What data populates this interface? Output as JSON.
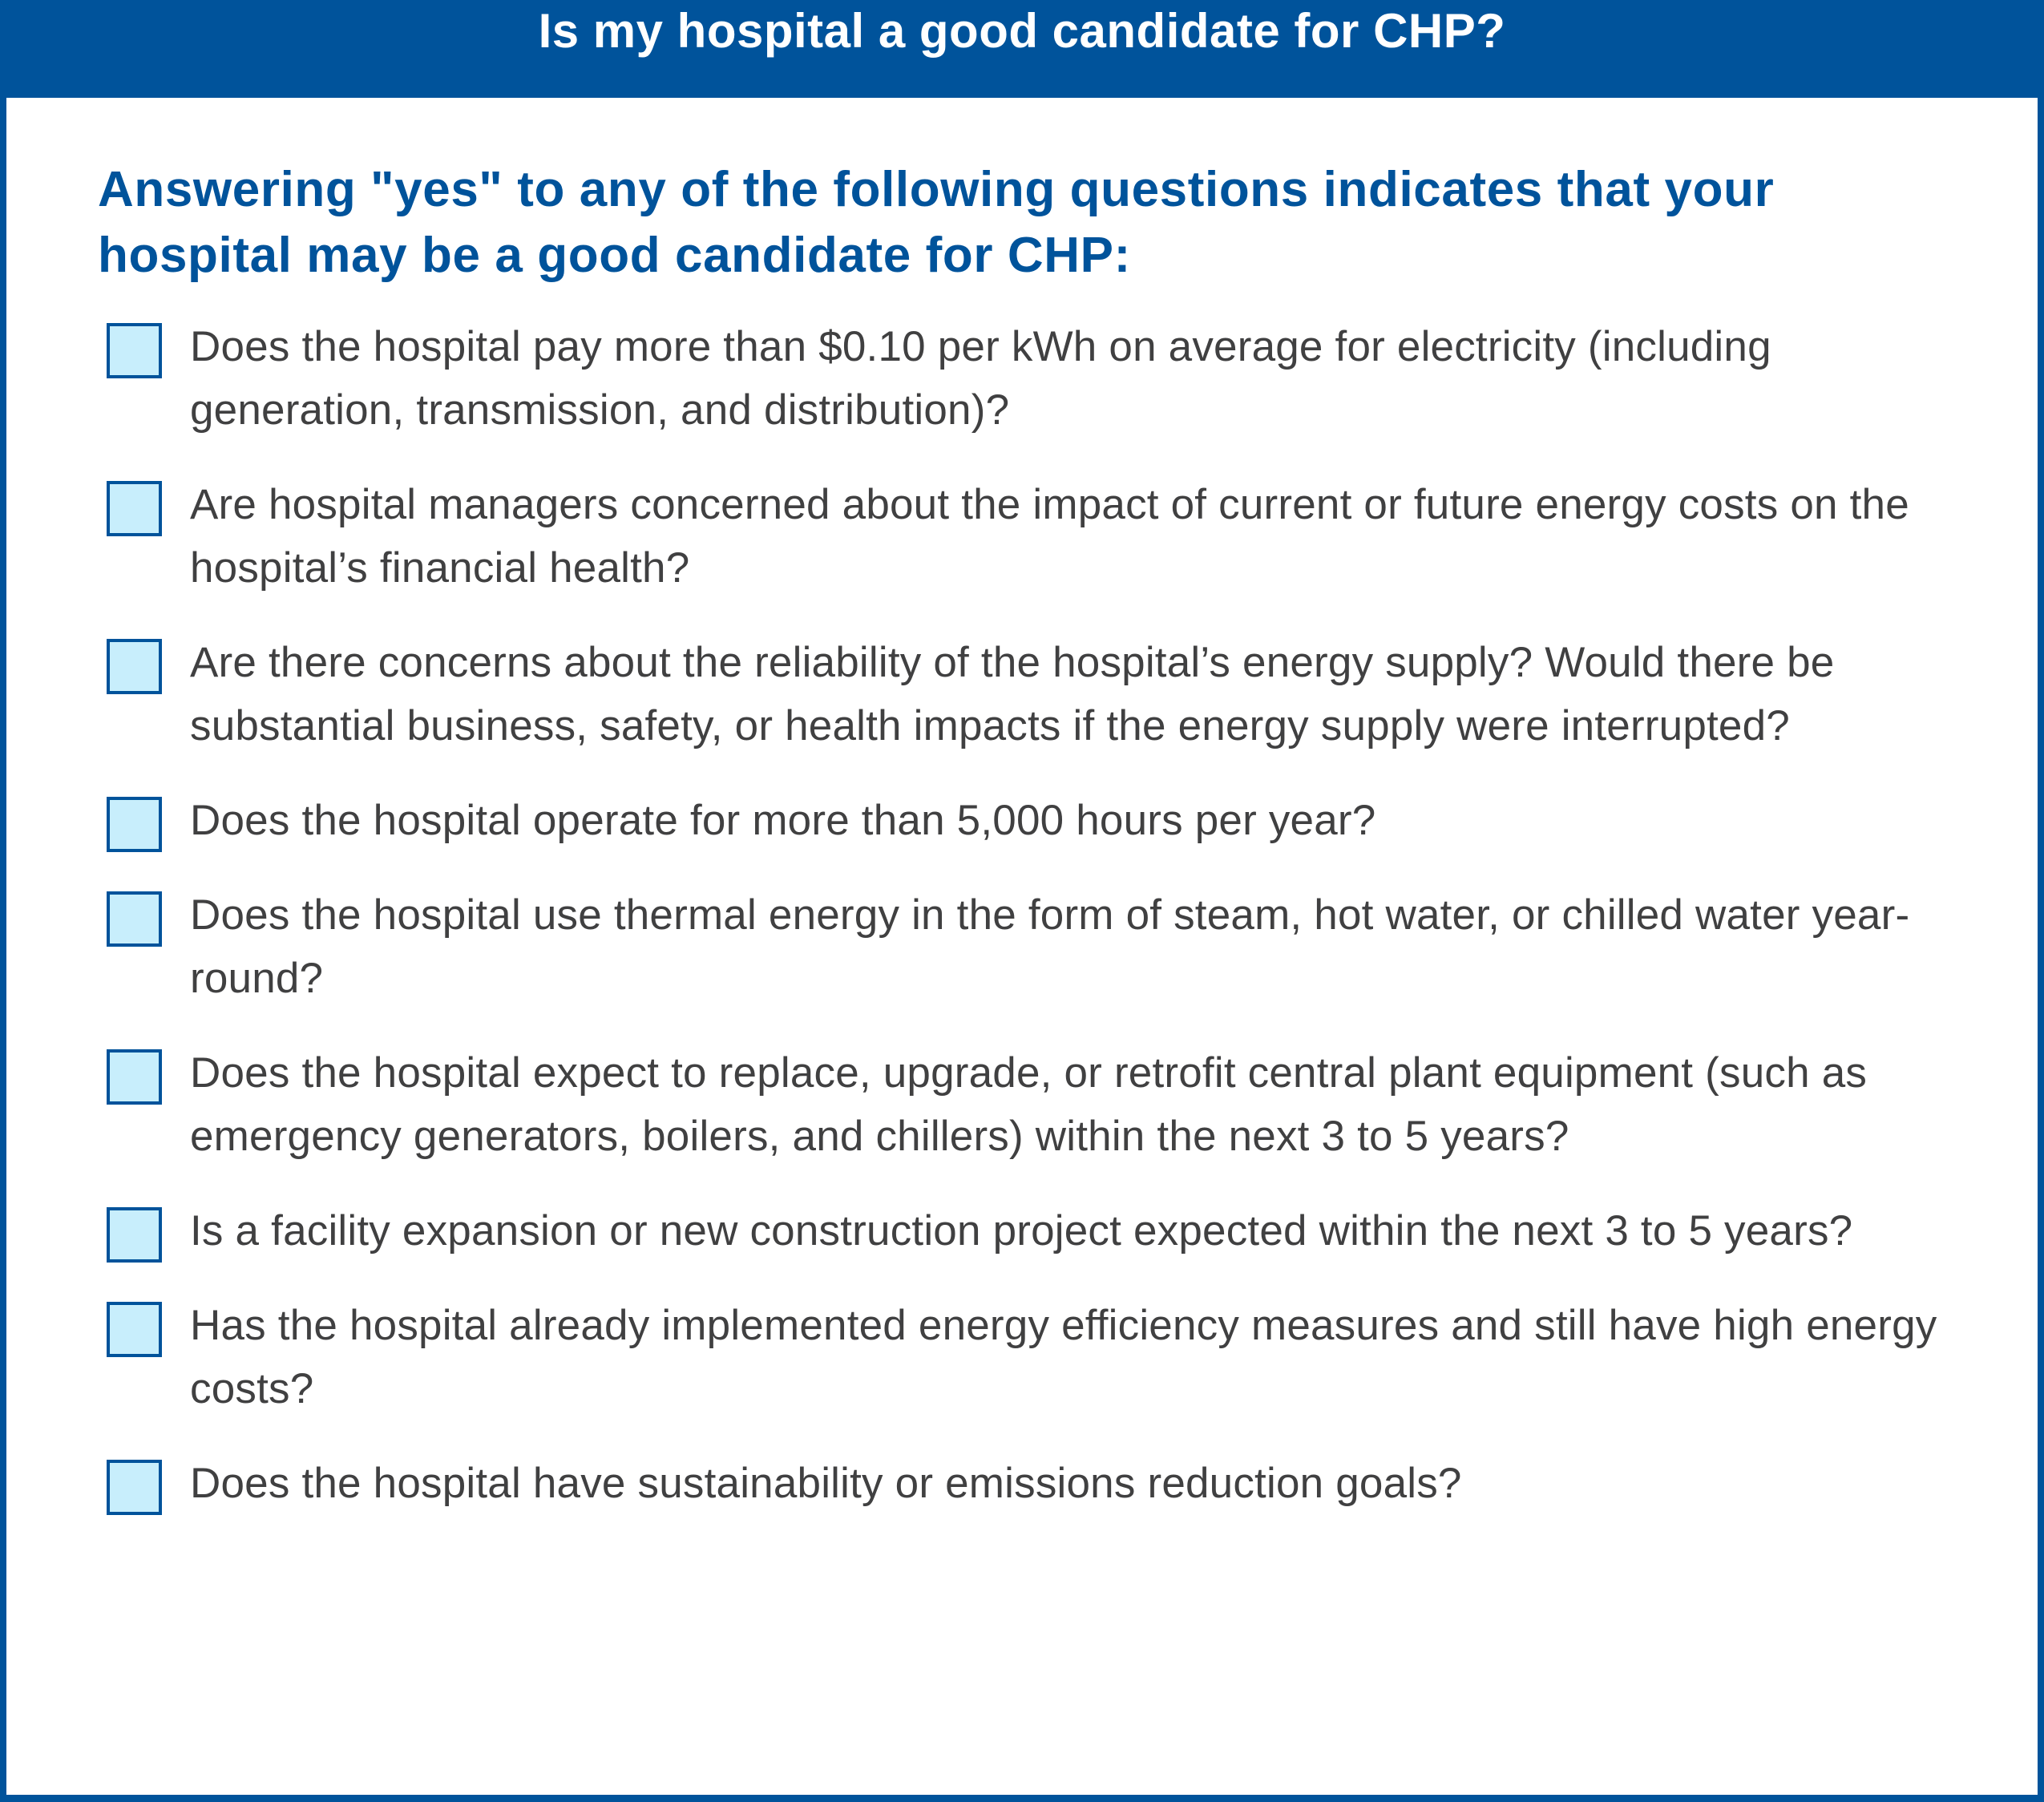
{
  "header": {
    "title": "Is my hospital a good candidate for CHP?"
  },
  "intro": {
    "text": "Answering \"yes\" to any of the following questions indicates that your hospital may be a good candidate for CHP:"
  },
  "colors": {
    "brand_blue": "#00539B",
    "checkbox_fill": "#C8EEFC",
    "body_text": "#404041"
  },
  "checklist": {
    "items": [
      {
        "checked": false,
        "text": "Does the hospital pay more than $0.10 per kWh on average for electricity (including generation, transmission, and distribution)?"
      },
      {
        "checked": false,
        "text": "Are hospital managers concerned about the impact of current or future energy costs on the hospital’s financial health?"
      },
      {
        "checked": false,
        "text": "Are there concerns about the reliability of the hospital’s energy supply? Would there be substantial business, safety, or health impacts if the energy supply were interrupted?"
      },
      {
        "checked": false,
        "text": "Does the hospital operate for more than 5,000 hours per year?"
      },
      {
        "checked": false,
        "text": "Does the hospital use thermal energy in the form of steam, hot water, or chilled water year-round?"
      },
      {
        "checked": false,
        "text": "Does the hospital expect to replace, upgrade, or retrofit central plant equipment (such as emergency generators, boilers, and chillers) within the next 3 to 5 years?"
      },
      {
        "checked": false,
        "text": "Is a facility expansion or new construction project expected within the next 3 to 5 years?"
      },
      {
        "checked": false,
        "text": "Has the hospital already implemented energy efficiency measures and still have high energy costs?"
      },
      {
        "checked": false,
        "text": "Does the hospital have sustainability or emissions reduction goals?"
      }
    ]
  }
}
